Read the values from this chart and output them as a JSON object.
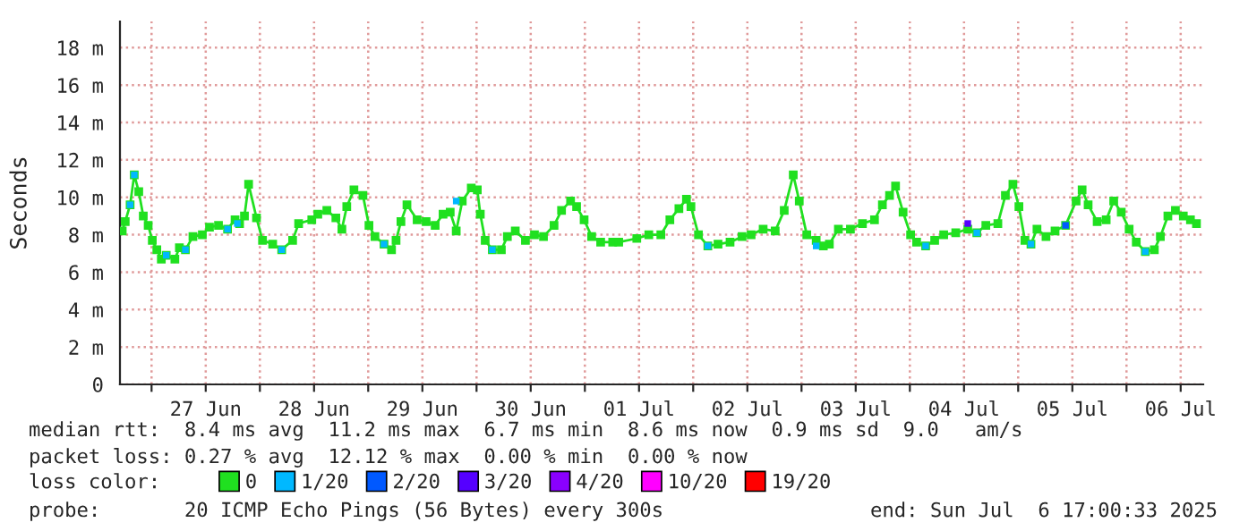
{
  "chart_data": {
    "type": "line",
    "ylabel": "Seconds",
    "legend_title": "loss color:",
    "legend": "bottom",
    "grid": true,
    "marker": "square",
    "line_style": "solid",
    "xlim": [
      "2025-06-26T17:00",
      "2025-07-06T17:00"
    ],
    "xticks": [
      {
        "value": "2025-06-27",
        "label": null
      },
      {
        "value": "2025-06-27T12:00",
        "label": "27 Jun"
      },
      {
        "value": "2025-06-28",
        "label": null
      },
      {
        "value": "2025-06-28T12:00",
        "label": "28 Jun"
      },
      {
        "value": "2025-06-29",
        "label": null
      },
      {
        "value": "2025-06-29T12:00",
        "label": "29 Jun"
      },
      {
        "value": "2025-06-30",
        "label": null
      },
      {
        "value": "2025-06-30T12:00",
        "label": "30 Jun"
      },
      {
        "value": "2025-07-01",
        "label": null
      },
      {
        "value": "2025-07-01T12:00",
        "label": "01 Jul"
      },
      {
        "value": "2025-07-02",
        "label": null
      },
      {
        "value": "2025-07-02T12:00",
        "label": "02 Jul"
      },
      {
        "value": "2025-07-03",
        "label": null
      },
      {
        "value": "2025-07-03T12:00",
        "label": "03 Jul"
      },
      {
        "value": "2025-07-04",
        "label": null
      },
      {
        "value": "2025-07-04T12:00",
        "label": "04 Jul"
      },
      {
        "value": "2025-07-05",
        "label": null
      },
      {
        "value": "2025-07-05T12:00",
        "label": "05 Jul"
      },
      {
        "value": "2025-07-06",
        "label": null
      },
      {
        "value": "2025-07-06T12:00",
        "label": "06 Jul"
      }
    ],
    "ylim": [
      0,
      19.4
    ],
    "yticks": [
      0,
      {
        "value": 2,
        "label": "2 m"
      },
      {
        "value": 4,
        "label": "4 m"
      },
      {
        "value": 6,
        "label": "6 m"
      },
      {
        "value": 8,
        "label": "8 m"
      },
      {
        "value": 10,
        "label": "10 m"
      },
      {
        "value": 12,
        "label": "12 m"
      },
      {
        "value": 14,
        "label": "14 m"
      },
      {
        "value": 16,
        "label": "16 m"
      },
      {
        "value": 18,
        "label": "18 m"
      }
    ],
    "annotations": [
      "median rtt:  8.4 ms avg  11.2 ms max  6.7 ms min  8.6 ms now  0.9 ms sd  9.0   am/s",
      "packet loss: 0.27 % avg  12.12 % max  0.00 % min  0.00 % now",
      "probe:       20 ICMP Echo Pings (56 Bytes) every 300s",
      "end: Sun Jul  6 17:00:33 2025"
    ],
    "series": [
      {
        "name": "0",
        "color": "#20e020",
        "x": [
          "2025-06-26T17:30",
          "2025-06-26T18:10",
          "2025-06-26T19:15",
          "2025-06-26T20:10",
          "2025-06-26T21:10",
          "2025-06-26T22:10",
          "2025-06-26T23:15",
          "2025-06-27T00:10",
          "2025-06-27T01:10",
          "2025-06-27T02:10",
          "2025-06-27T03:15",
          "2025-06-27T05:10",
          "2025-06-27T06:10",
          "2025-06-27T07:30",
          "2025-06-27T09:10",
          "2025-06-27T11:15",
          "2025-06-27T12:50",
          "2025-06-27T14:50",
          "2025-06-27T16:50",
          "2025-06-27T18:30",
          "2025-06-27T19:30",
          "2025-06-27T20:35",
          "2025-06-27T21:30",
          "2025-06-27T23:15",
          "2025-06-28T00:35",
          "2025-06-28T02:50",
          "2025-06-28T04:50",
          "2025-06-28T07:15",
          "2025-06-28T08:35",
          "2025-06-28T11:30",
          "2025-06-28T12:50",
          "2025-06-28T14:50",
          "2025-06-28T16:50",
          "2025-06-28T18:10",
          "2025-06-28T19:15",
          "2025-06-28T20:50",
          "2025-06-28T22:50",
          "2025-06-29T00:10",
          "2025-06-29T01:30",
          "2025-06-29T03:30",
          "2025-06-29T05:10",
          "2025-06-29T06:10",
          "2025-06-29T07:15",
          "2025-06-29T08:35",
          "2025-06-29T10:50",
          "2025-06-29T12:50",
          "2025-06-29T14:50",
          "2025-06-29T16:35",
          "2025-06-29T18:10",
          "2025-06-29T19:30",
          "2025-06-29T20:50",
          "2025-06-29T22:50",
          "2025-06-30T00:10",
          "2025-06-30T00:50",
          "2025-06-30T01:55",
          "2025-06-30T03:30",
          "2025-06-30T05:30",
          "2025-06-30T06:50",
          "2025-06-30T08:35",
          "2025-06-30T10:50",
          "2025-06-30T12:50",
          "2025-06-30T14:50",
          "2025-06-30T17:10",
          "2025-06-30T18:50",
          "2025-06-30T20:50",
          "2025-06-30T22:10",
          "2025-06-30T23:50",
          "2025-07-01T01:30",
          "2025-07-01T03:30",
          "2025-07-01T06:10",
          "2025-07-01T07:30",
          "2025-07-01T11:30",
          "2025-07-01T14:10",
          "2025-07-01T16:50",
          "2025-07-01T18:50",
          "2025-07-01T20:50",
          "2025-07-01T22:30",
          "2025-07-01T23:30",
          "2025-07-02T01:10",
          "2025-07-02T03:15",
          "2025-07-02T05:30",
          "2025-07-02T08:10",
          "2025-07-02T10:50",
          "2025-07-02T12:50",
          "2025-07-02T15:30",
          "2025-07-02T18:10",
          "2025-07-02T20:10",
          "2025-07-02T22:10",
          "2025-07-02T23:30",
          "2025-07-03T01:10",
          "2025-07-03T03:15",
          "2025-07-03T04:50",
          "2025-07-03T06:10",
          "2025-07-03T08:10",
          "2025-07-03T10:50",
          "2025-07-03T13:30",
          "2025-07-03T16:10",
          "2025-07-03T17:55",
          "2025-07-03T19:30",
          "2025-07-03T20:50",
          "2025-07-03T22:30",
          "2025-07-04T00:10",
          "2025-07-04T01:30",
          "2025-07-04T03:30",
          "2025-07-04T05:30",
          "2025-07-04T07:30",
          "2025-07-04T10:10",
          "2025-07-04T12:50",
          "2025-07-04T14:50",
          "2025-07-04T16:50",
          "2025-07-04T19:30",
          "2025-07-04T21:10",
          "2025-07-04T22:50",
          "2025-07-05T00:10",
          "2025-07-05T01:30",
          "2025-07-05T02:50",
          "2025-07-05T04:10",
          "2025-07-05T06:10",
          "2025-07-05T08:10",
          "2025-07-05T10:30",
          "2025-07-05T12:50",
          "2025-07-05T14:10",
          "2025-07-05T15:30",
          "2025-07-05T17:30",
          "2025-07-05T19:30",
          "2025-07-05T21:10",
          "2025-07-05T22:50",
          "2025-07-06T00:35",
          "2025-07-06T02:10",
          "2025-07-06T04:10",
          "2025-07-06T06:10",
          "2025-07-06T07:30",
          "2025-07-06T09:10",
          "2025-07-06T10:50",
          "2025-07-06T12:35",
          "2025-07-06T14:10",
          "2025-07-06T15:30"
        ],
        "values": [
          8.2,
          8.7,
          9.6,
          11.2,
          10.3,
          9.0,
          8.5,
          7.7,
          7.2,
          6.7,
          6.9,
          6.7,
          7.3,
          7.2,
          7.9,
          8.0,
          8.4,
          8.5,
          8.3,
          8.8,
          8.6,
          9.0,
          10.7,
          8.9,
          7.7,
          7.5,
          7.2,
          7.7,
          8.6,
          8.8,
          9.1,
          9.3,
          8.9,
          8.3,
          9.5,
          10.4,
          10.1,
          8.5,
          7.9,
          7.5,
          7.2,
          7.7,
          8.7,
          9.6,
          8.8,
          8.7,
          8.5,
          9.1,
          9.2,
          8.2,
          9.8,
          10.5,
          10.4,
          9.1,
          7.7,
          7.2,
          7.2,
          7.9,
          8.2,
          7.7,
          8.0,
          7.9,
          8.5,
          9.3,
          9.8,
          9.5,
          8.8,
          7.9,
          7.6,
          7.6,
          7.6,
          7.8,
          8.0,
          8.0,
          8.8,
          9.4,
          9.9,
          9.5,
          8.0,
          7.4,
          7.5,
          7.6,
          7.9,
          8.0,
          8.3,
          8.2,
          9.3,
          11.2,
          9.8,
          8.0,
          7.7,
          7.4,
          7.5,
          8.3,
          8.3,
          8.6,
          8.8,
          9.6,
          10.1,
          10.6,
          9.2,
          8.0,
          7.6,
          7.4,
          7.7,
          8.0,
          8.1,
          8.3,
          8.1,
          8.5,
          8.6,
          10.1,
          10.7,
          9.5,
          7.7,
          7.5,
          8.3,
          7.9,
          8.2,
          8.5,
          9.8,
          10.4,
          9.6,
          8.7,
          8.8,
          9.8,
          9.2,
          8.3,
          7.6,
          7.1,
          7.2,
          7.9,
          9.0,
          9.3,
          9.0,
          8.8,
          8.6
        ]
      },
      {
        "name": "1/20",
        "type": "scatter",
        "color": "#00b8ff",
        "x": [
          "2025-06-26T19:15",
          "2025-06-26T20:10",
          "2025-06-27T03:15",
          "2025-06-27T07:30",
          "2025-06-27T16:50",
          "2025-06-27T19:00",
          "2025-06-28T04:50",
          "2025-06-29T03:30",
          "2025-06-29T19:30",
          "2025-06-30T03:30",
          "2025-07-02T03:15",
          "2025-07-03T03:15",
          "2025-07-04T03:30",
          "2025-07-04T14:50",
          "2025-07-05T02:50",
          "2025-07-06T04:10"
        ],
        "values": [
          9.6,
          11.2,
          6.9,
          7.2,
          8.3,
          8.6,
          7.2,
          7.5,
          9.8,
          7.2,
          7.4,
          7.4,
          7.4,
          8.1,
          7.5,
          7.1
        ]
      },
      {
        "name": "2/20",
        "type": "scatter",
        "color": "#0059ff",
        "x": [
          "2025-07-05T10:30"
        ],
        "values": [
          8.5
        ]
      },
      {
        "name": "3/20",
        "type": "scatter",
        "color": "#5500ff",
        "x": [
          "2025-07-04T12:50"
        ],
        "values": [
          8.6
        ]
      },
      {
        "name": "4/20",
        "type": "scatter",
        "color": "#8a00ff"
      },
      {
        "name": "10/20",
        "type": "scatter",
        "color": "#ff00ff"
      },
      {
        "name": "19/20",
        "type": "scatter",
        "color": "#ff0000"
      }
    ]
  }
}
